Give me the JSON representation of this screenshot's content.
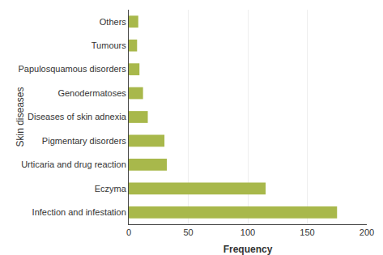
{
  "chart_data": {
    "type": "bar",
    "orientation": "horizontal",
    "categories": [
      "Infection and infestation",
      "Eczyma",
      "Urticaria and drug reaction",
      "Pigmentary disorders",
      "Diseases of skin adnexia",
      "Genodermatoses",
      "Papulosquamous disorders",
      "Tumours",
      "Others"
    ],
    "values": [
      175,
      115,
      32,
      30,
      16,
      12,
      9,
      7,
      8
    ],
    "color": "#a8b84b",
    "xlabel": "Frequency",
    "ylabel": "Skin diseases",
    "xlim": [
      0,
      200
    ],
    "xticks": [
      0,
      50,
      100,
      150,
      200
    ],
    "grid": true
  }
}
